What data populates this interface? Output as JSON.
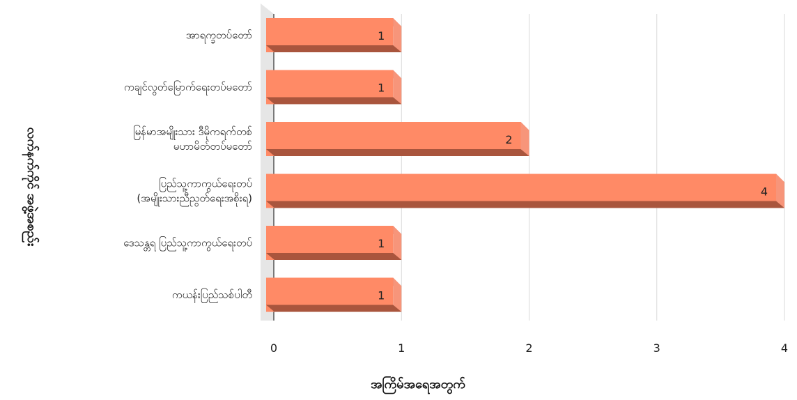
{
  "chart_data": {
    "type": "bar",
    "orientation": "horizontal",
    "categories": [
      "အာရက္ခတပ်တော်",
      "ကချင်လွတ်မြောက်ရေးတပ်မတော်",
      "မြန်မာအမျိုးသား ဒီမိုကရက်တစ် မဟာမိတ်တပ်မတော်",
      "ပြည်သူ့ကာကွယ်ရေးတပ် (အမျိုးသားညီညွတ်ရေးအစိုးရ)",
      "ဒေသန္တရ ပြည်သူ့ကာကွယ်ရေးတပ်",
      "ကယန်းပြည်သစ်ပါတီ"
    ],
    "category_lines": [
      [
        "အာရက္ခတပ်တော်"
      ],
      [
        "ကချင်လွတ်မြောက်ရေးတပ်မတော်"
      ],
      [
        "မြန်မာအမျိုးသား ဒီမိုကရက်တစ်",
        "မဟာမိတ်တပ်မတော်"
      ],
      [
        "ပြည်သူ့ကာကွယ်ရေးတပ်",
        "(အမျိုးသားညီညွတ်ရေးအစိုးရ)"
      ],
      [
        "ဒေသန္တရ ပြည်သူ့ကာကွယ်ရေးတပ်"
      ],
      [
        "ကယန်းပြည်သစ်ပါတီ"
      ]
    ],
    "values": [
      1,
      1,
      2,
      4,
      1,
      1
    ],
    "xlim": [
      0,
      4
    ],
    "xticks": [
      0,
      1,
      2,
      3,
      4
    ],
    "xlabel": "အကြိမ်အရေအတွက်",
    "ylabel": "လက်နက်ကိုင် အဖွဲ့အစည်း",
    "grid": "vertical",
    "colors": {
      "bar_front": "#FF8A66",
      "bar_top": "#E8674A",
      "bar_side": "#F7957A",
      "bar_bottom": "#A9553D",
      "grid": "#D9D9D9",
      "axis": "#555555",
      "wall": "#E6E6E6"
    }
  }
}
